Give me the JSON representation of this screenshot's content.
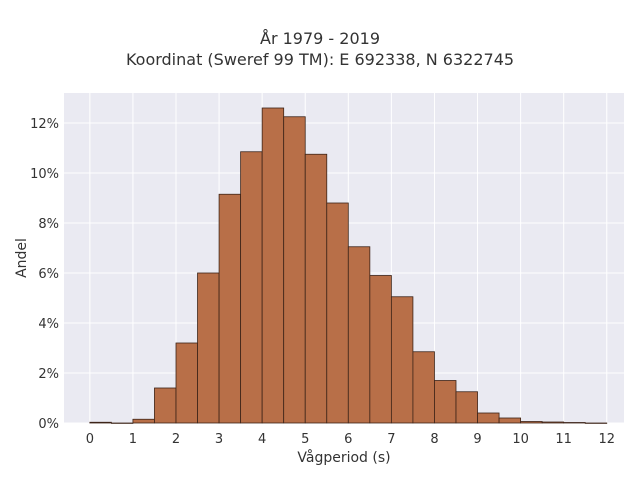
{
  "chart_data": {
    "type": "bar",
    "title": "År 1979 - 2019",
    "subtitle": "Koordinat (Sweref 99 TM): E 692338, N 6322745",
    "xlabel": "Vågperiod (s)",
    "ylabel": "Andel",
    "xlim": [
      -0.6,
      12.4
    ],
    "ylim": [
      0,
      13.2
    ],
    "x_ticks": [
      0,
      1,
      2,
      3,
      4,
      5,
      6,
      7,
      8,
      9,
      10,
      11,
      12
    ],
    "x_tick_labels": [
      "0",
      "1",
      "2",
      "3",
      "4",
      "5",
      "6",
      "7",
      "8",
      "9",
      "10",
      "11",
      "12"
    ],
    "y_ticks": [
      0,
      2,
      4,
      6,
      8,
      10,
      12
    ],
    "y_tick_labels": [
      "0%",
      "2%",
      "4%",
      "6%",
      "8%",
      "10%",
      "12%"
    ],
    "bin_width": 0.5,
    "bin_starts": [
      0,
      0.5,
      1,
      1.5,
      2,
      2.5,
      3,
      3.5,
      4,
      4.5,
      5,
      5.5,
      6,
      6.5,
      7,
      7.5,
      8,
      8.5,
      9,
      9.5,
      10,
      10.5,
      11,
      11.5
    ],
    "values": [
      0.03,
      0,
      0.15,
      1.4,
      3.2,
      6.0,
      9.15,
      10.85,
      12.6,
      12.25,
      10.75,
      8.8,
      7.05,
      5.9,
      5.05,
      2.85,
      1.7,
      1.25,
      0.4,
      0.2,
      0.06,
      0.04,
      0.02,
      0
    ],
    "grid": true,
    "colors": {
      "bar_fill": "#b86f48",
      "bar_edge": "#3d2418",
      "plot_background": "#eaeaf2",
      "grid": "#ffffff"
    }
  }
}
